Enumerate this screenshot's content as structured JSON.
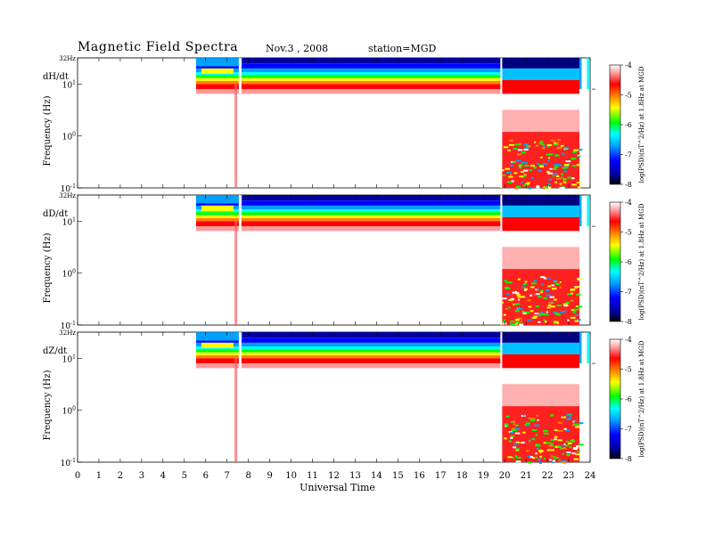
{
  "header": {
    "title": "Magnetic  Field  Spectra",
    "date": "Nov.3  , 2008",
    "station": "station=MGD"
  },
  "chart_data": [
    {
      "type": "heatmap",
      "component": "dH/dt",
      "xlabel": "Universal Time",
      "ylabel": "Frequency  (Hz)",
      "x_ticks": [
        "0",
        "1",
        "2",
        "3",
        "4",
        "5",
        "6",
        "7",
        "8",
        "9",
        "10",
        "11",
        "12",
        "13",
        "14",
        "15",
        "16",
        "17",
        "18",
        "19",
        "20",
        "21",
        "22",
        "23",
        "24"
      ],
      "y_ticks": [
        "32Hz",
        "10^1",
        "10^0",
        "10^-1"
      ],
      "xlim": [
        0,
        24
      ],
      "ylim_hz": [
        0.1,
        32
      ],
      "y_scale": "log",
      "colorbar": {
        "label": "log(PSD)(nT^2/Hz) at 1.8Hz at MGD",
        "range": [
          -8,
          -4
        ],
        "ticks": [
          "-4",
          "-5",
          "-6",
          "-7",
          "-8"
        ]
      },
      "data_coverage_ut": [
        [
          5.55,
          23.6
        ],
        [
          23.85,
          23.95
        ]
      ],
      "high_sampling_ut": [
        19.85,
        23.5
      ]
    },
    {
      "type": "heatmap",
      "component": "dD/dt",
      "xlabel": "Universal Time",
      "ylabel": "Frequency  (Hz)",
      "x_ticks": [
        "0",
        "1",
        "2",
        "3",
        "4",
        "5",
        "6",
        "7",
        "8",
        "9",
        "10",
        "11",
        "12",
        "13",
        "14",
        "15",
        "16",
        "17",
        "18",
        "19",
        "20",
        "21",
        "22",
        "23",
        "24"
      ],
      "y_ticks": [
        "32Hz",
        "10^1",
        "10^0",
        "10^-1"
      ],
      "xlim": [
        0,
        24
      ],
      "ylim_hz": [
        0.1,
        32
      ],
      "y_scale": "log",
      "colorbar": {
        "label": "log(PSD)(nT^2/Hz) at 1.8Hz at MGD",
        "range": [
          -8,
          -4
        ],
        "ticks": [
          "-4",
          "-5",
          "-6",
          "-7",
          "-8"
        ]
      },
      "data_coverage_ut": [
        [
          5.55,
          23.6
        ],
        [
          23.85,
          23.95
        ]
      ],
      "high_sampling_ut": [
        19.85,
        23.5
      ]
    },
    {
      "type": "heatmap",
      "component": "dZ/dt",
      "xlabel": "Universal Time",
      "ylabel": "Frequency  (Hz)",
      "x_ticks": [
        "0",
        "1",
        "2",
        "3",
        "4",
        "5",
        "6",
        "7",
        "8",
        "9",
        "10",
        "11",
        "12",
        "13",
        "14",
        "15",
        "16",
        "17",
        "18",
        "19",
        "20",
        "21",
        "22",
        "23",
        "24"
      ],
      "y_ticks": [
        "32Hz",
        "10^1",
        "10^0",
        "10^-1"
      ],
      "xlim": [
        0,
        24
      ],
      "ylim_hz": [
        0.1,
        32
      ],
      "y_scale": "log",
      "colorbar": {
        "label": "log(PSD)(nT^2/Hz) at 1.8Hz at MGD",
        "range": [
          -8,
          -4
        ],
        "ticks": [
          "-4",
          "-5",
          "-6",
          "-7",
          "-8"
        ]
      },
      "data_coverage_ut": [
        [
          5.55,
          23.6
        ],
        [
          23.85,
          23.95
        ]
      ],
      "high_sampling_ut": [
        19.85,
        23.5
      ]
    }
  ],
  "colors": {
    "colormap": [
      "#000000",
      "#0000a0",
      "#0000ff",
      "#00a0ff",
      "#00ffff",
      "#00ff00",
      "#ffff00",
      "#ff8000",
      "#ff0000",
      "#ff9a9a",
      "#ffffff"
    ],
    "gap": "#ffffff"
  }
}
